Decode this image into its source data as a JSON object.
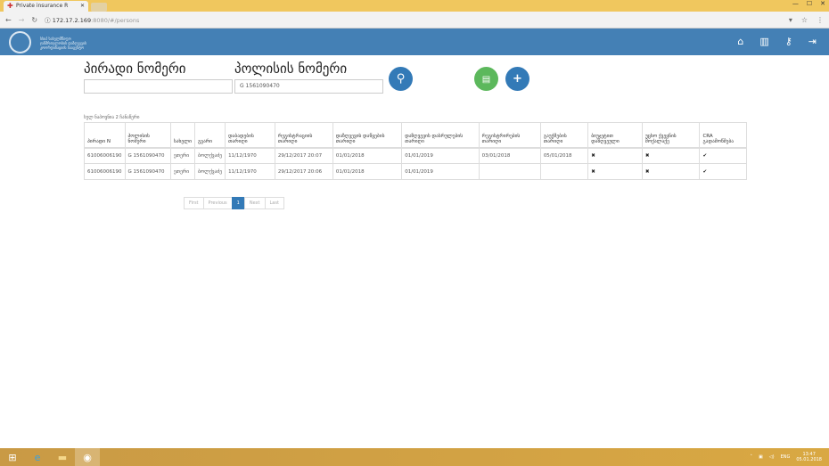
{
  "browser": {
    "tab_title": "Private insurance R",
    "url_host": "172.17.2.169",
    "url_path": ":8080/#/persons"
  },
  "header": {
    "logo_text": [
      "სსიპ სახელმწიფო",
      "ჯანმრთელობის დაზღვევის",
      "კოორდინაციის სააგენტო"
    ]
  },
  "search": {
    "personal_label": "პირადი ნომერი",
    "personal_value": "",
    "policy_label": "პოლისის ნომერი",
    "policy_value": "G 1561090470"
  },
  "results": {
    "found_text": "სულ ნაპოვნია 2 ჩანაწერი"
  },
  "table": {
    "columns": [
      "პირადი N",
      "პოლისის ნომერი",
      "სახელი",
      "გვარი",
      "დაბადების თარიღი",
      "რეგისტრაციის თარიღი",
      "დაზღვევის დაწყების თარიღი",
      "დაზღვევის დასრულების თარიღი",
      "რეგისტრირების თარიღი",
      "გაუქმების თარიღი",
      "ბიუჯეტით დაზღვეული",
      "უცხო ქვეყნის მოქალაქე",
      "CRA გადამოწმება"
    ],
    "rows": [
      [
        "61006006190",
        "G 1561090470",
        "ეთერი",
        "ბოლქვაძე",
        "11/12/1970",
        "29/12/2017 20:07",
        "01/01/2018",
        "01/01/2019",
        "03/01/2018",
        "05/01/2018",
        "✖",
        "✖",
        "✔"
      ],
      [
        "61006006190",
        "G 1561090470",
        "ეთერი",
        "ბოლქვაძე",
        "11/12/1970",
        "29/12/2017 20:06",
        "01/01/2018",
        "01/01/2019",
        "",
        "",
        "✖",
        "✖",
        "✔"
      ]
    ]
  },
  "pagination": {
    "first": "First",
    "previous": "Previous",
    "current": "1",
    "next": "Next",
    "last": "Last"
  },
  "taskbar": {
    "lang": "ENG",
    "time": "13:47",
    "date": "05.01.2018"
  },
  "colors": {
    "nav": "#4480b5",
    "search_button": "#337ab7",
    "excel_button": "#5cb85c"
  }
}
